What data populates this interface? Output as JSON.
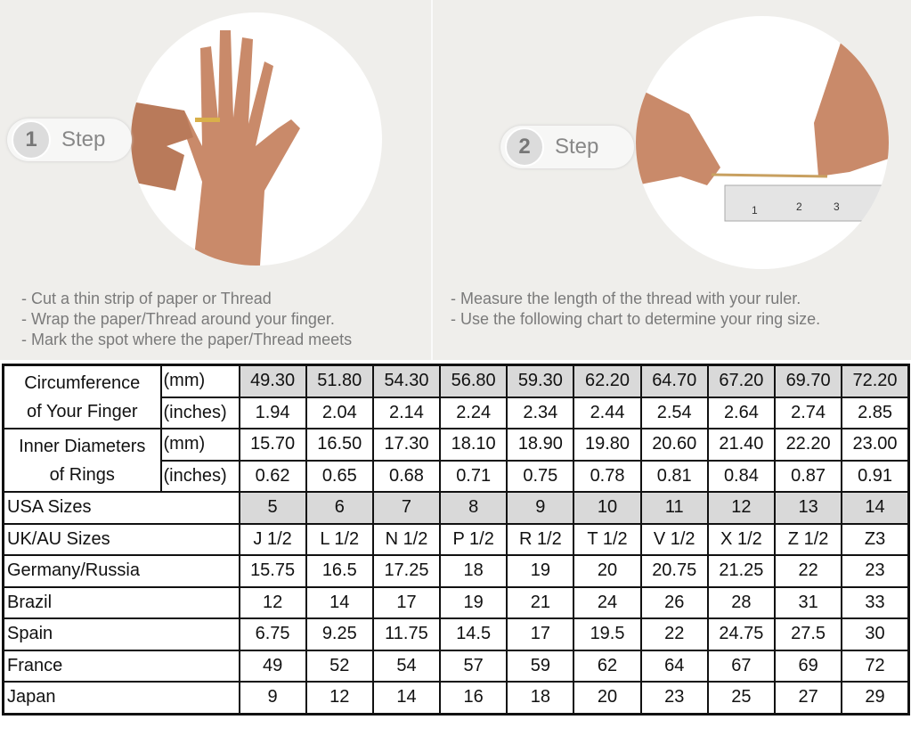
{
  "step1": {
    "number": "1",
    "label": "Step",
    "bullets": [
      "- Cut a thin strip of paper or Thread",
      "- Wrap the paper/Thread around your finger.",
      "- Mark the spot where the paper/Thread meets"
    ]
  },
  "step2": {
    "number": "2",
    "label": "Step",
    "bullets": [
      "- Measure the length of the thread with your ruler.",
      "- Use the following chart to determine your ring size."
    ]
  },
  "ruler_marks": [
    "1",
    "2",
    "3"
  ],
  "colors": {
    "background": "#efeeeb",
    "shaded_cell": "#d9d9d9",
    "border": "#111111"
  },
  "table": {
    "circumference": {
      "label": "Circumference of Your Finger",
      "label_lines": [
        "Circumference",
        "of Your Finger"
      ],
      "mm_unit": "(mm)",
      "mm": [
        "49.30",
        "51.80",
        "54.30",
        "56.80",
        "59.30",
        "62.20",
        "64.70",
        "67.20",
        "69.70",
        "72.20"
      ],
      "in_unit": "(inches)",
      "inches": [
        "1.94",
        "2.04",
        "2.14",
        "2.24",
        "2.34",
        "2.44",
        "2.54",
        "2.64",
        "2.74",
        "2.85"
      ]
    },
    "inner_diameter": {
      "label_lines": [
        "Inner Diameters",
        "of Rings"
      ],
      "mm_unit": "(mm)",
      "mm": [
        "15.70",
        "16.50",
        "17.30",
        "18.10",
        "18.90",
        "19.80",
        "20.60",
        "21.40",
        "22.20",
        "23.00"
      ],
      "in_unit": "(inches)",
      "inches": [
        "0.62",
        "0.65",
        "0.68",
        "0.71",
        "0.75",
        "0.78",
        "0.81",
        "0.84",
        "0.87",
        "0.91"
      ]
    },
    "rows": [
      {
        "label": "USA Sizes",
        "values": [
          "5",
          "6",
          "7",
          "8",
          "9",
          "10",
          "11",
          "12",
          "13",
          "14"
        ],
        "shaded": true
      },
      {
        "label": "UK/AU Sizes",
        "values": [
          "J 1/2",
          "L 1/2",
          "N 1/2",
          "P 1/2",
          "R 1/2",
          "T 1/2",
          "V 1/2",
          "X 1/2",
          "Z 1/2",
          "Z3"
        ]
      },
      {
        "label": "Germany/Russia",
        "values": [
          "15.75",
          "16.5",
          "17.25",
          "18",
          "19",
          "20",
          "20.75",
          "21.25",
          "22",
          "23"
        ]
      },
      {
        "label": "Brazil",
        "values": [
          "12",
          "14",
          "17",
          "19",
          "21",
          "24",
          "26",
          "28",
          "31",
          "33"
        ]
      },
      {
        "label": "Spain",
        "values": [
          "6.75",
          "9.25",
          "11.75",
          "14.5",
          "17",
          "19.5",
          "22",
          "24.75",
          "27.5",
          "30"
        ]
      },
      {
        "label": "France",
        "values": [
          "49",
          "52",
          "54",
          "57",
          "59",
          "62",
          "64",
          "67",
          "69",
          "72"
        ]
      },
      {
        "label": "Japan",
        "values": [
          "9",
          "12",
          "14",
          "16",
          "18",
          "20",
          "23",
          "25",
          "27",
          "29"
        ]
      }
    ]
  }
}
